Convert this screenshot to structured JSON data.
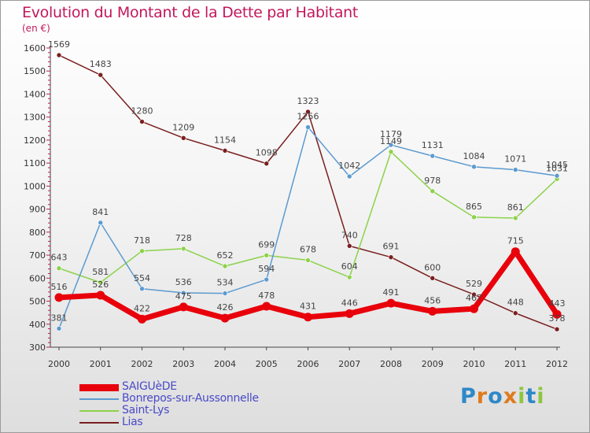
{
  "header": {
    "title": "Evolution du Montant de la Dette par Habitant",
    "unit": "(en €)"
  },
  "logo": {
    "text": "Proxiti",
    "letters": [
      "P",
      "r",
      "o",
      "x",
      "i",
      "t",
      "i"
    ],
    "colors": [
      "#2e88c8",
      "#e07a1c",
      "#2e88c8",
      "#e07a1c",
      "#8cc63f",
      "#2e88c8",
      "#8cc63f"
    ]
  },
  "chart_data": {
    "type": "line",
    "title": "Evolution du Montant de la Dette par Habitant",
    "ylabel": "(en €)",
    "xlabel": "",
    "x": [
      "2000",
      "2001",
      "2002",
      "2003",
      "2004",
      "2005",
      "2006",
      "2007",
      "2008",
      "2009",
      "2010",
      "2011",
      "2012"
    ],
    "ylim": [
      300,
      1600
    ],
    "yticks": [
      300,
      400,
      500,
      600,
      700,
      800,
      900,
      1000,
      1100,
      1200,
      1300,
      1400,
      1500,
      1600
    ],
    "grid": false,
    "legend_position": "bottom-left",
    "series": [
      {
        "name": "SAIGUèDE",
        "color": "#e8000b",
        "width": 7,
        "values": [
          516,
          526,
          422,
          475,
          426,
          478,
          431,
          446,
          491,
          456,
          467,
          715,
          443
        ]
      },
      {
        "name": "Bonrepos-sur-Aussonnelle",
        "color": "#5b9ad0",
        "width": 1.5,
        "values": [
          381,
          841,
          554,
          536,
          534,
          594,
          1256,
          1042,
          1179,
          1131,
          1084,
          1071,
          1045
        ]
      },
      {
        "name": "Saint-Lys",
        "color": "#8cd24a",
        "width": 1.5,
        "values": [
          643,
          581,
          718,
          728,
          652,
          699,
          678,
          604,
          1149,
          978,
          865,
          861,
          1031
        ]
      },
      {
        "name": "Lias",
        "color": "#7a1f1f",
        "width": 1.5,
        "values": [
          1569,
          1483,
          1280,
          1209,
          1154,
          1098,
          1323,
          740,
          691,
          600,
          529,
          448,
          378
        ]
      }
    ]
  }
}
